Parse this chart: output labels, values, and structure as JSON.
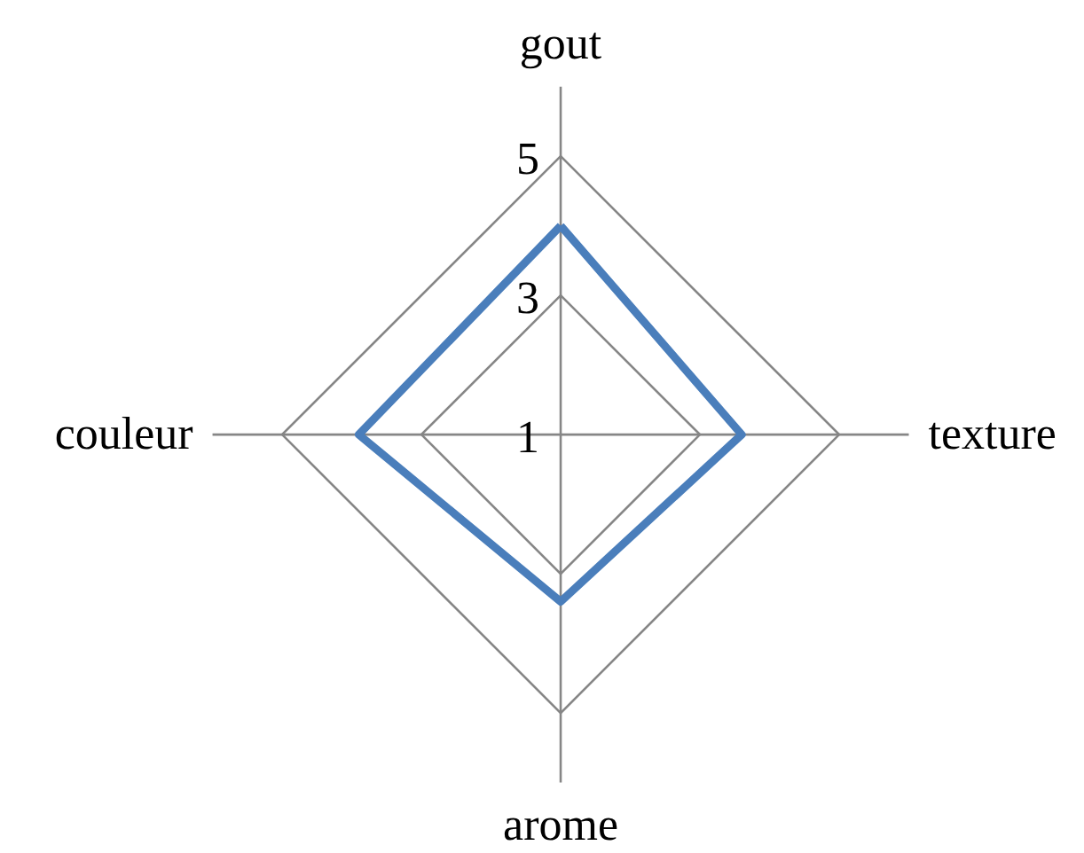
{
  "chart_data": {
    "type": "radar",
    "categories": [
      "gout",
      "texture",
      "arome",
      "couleur"
    ],
    "series": [
      {
        "color": "#4a7ebb",
        "values": [
          4,
          3.6,
          3.4,
          3.9
        ]
      }
    ],
    "ylim": [
      1,
      5
    ],
    "yticks": [
      1,
      3,
      5
    ],
    "grid": true
  }
}
